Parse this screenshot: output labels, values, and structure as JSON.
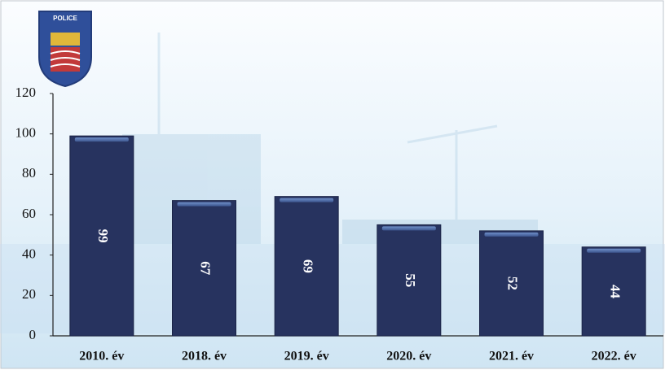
{
  "logo": {
    "text": "POLICE"
  },
  "chart_data": {
    "type": "bar",
    "categories": [
      "2010. év",
      "2018. év",
      "2019. év",
      "2020. év",
      "2021. év",
      "2022. év"
    ],
    "values": [
      99,
      67,
      69,
      55,
      52,
      44
    ],
    "color": "#27335f",
    "ylim": [
      0,
      120
    ],
    "yticks": [
      0,
      20,
      40,
      60,
      80,
      100,
      120
    ],
    "grid": false
  }
}
